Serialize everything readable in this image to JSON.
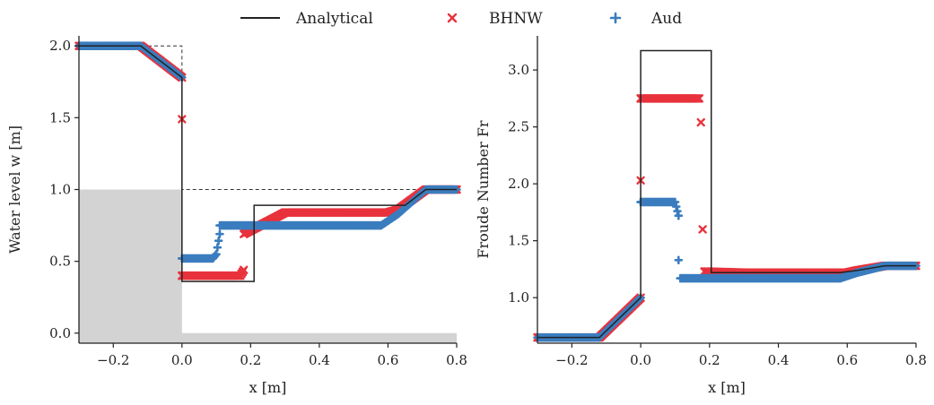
{
  "legend": {
    "placement": "top-center",
    "entries": [
      {
        "label": "Analytical",
        "style": "line",
        "color": "#222222"
      },
      {
        "label": "BHNW",
        "style": "x-marker",
        "color": "#e8323c"
      },
      {
        "label": "Aud",
        "style": "plus-marker",
        "color": "#3a7dbf"
      }
    ]
  },
  "colors": {
    "analytical": "#222222",
    "bhnw": "#e8323c",
    "aud": "#3a7dbf",
    "bed": "#d3d3d3",
    "initial": "#333333"
  },
  "chart_data": [
    {
      "type": "line",
      "xlabel": "x [m]",
      "ylabel": "Water level w [m]",
      "xlim": [
        -0.3,
        0.8
      ],
      "ylim": [
        -0.07,
        2.07
      ],
      "xticks": [
        "−0.2",
        "0.0",
        "0.2",
        "0.4",
        "0.6",
        "0.8"
      ],
      "xtick_values": [
        -0.2,
        0.0,
        0.2,
        0.4,
        0.6,
        0.8
      ],
      "yticks": [
        "0.0",
        "0.5",
        "1.0",
        "1.5",
        "2.0"
      ],
      "ytick_values": [
        0.0,
        0.5,
        1.0,
        1.5,
        2.0
      ],
      "grid": false,
      "bed": {
        "x": [
          -0.3,
          0.0,
          0.0,
          0.8
        ],
        "y": [
          1.0,
          1.0,
          0.0,
          0.0
        ],
        "fill_to": -0.07
      },
      "initial_condition": {
        "x": [
          -0.3,
          0.0,
          0.0,
          0.8
        ],
        "y": [
          2.0,
          2.0,
          1.0,
          1.0
        ]
      },
      "series": [
        {
          "name": "Analytical",
          "style": "line",
          "x": [
            -0.3,
            -0.12,
            0.0,
            0.0,
            0.21,
            0.21,
            0.65,
            0.71,
            0.8
          ],
          "y": [
            2.0,
            2.0,
            1.78,
            0.36,
            0.36,
            0.89,
            0.89,
            1.0,
            1.0
          ]
        },
        {
          "name": "BHNW",
          "style": "x",
          "x": [
            -0.3,
            -0.12,
            0.0,
            0.0,
            0.0,
            0.0,
            0.1,
            0.17,
            0.18,
            0.18,
            0.3,
            0.45,
            0.6,
            0.63,
            0.71,
            0.8
          ],
          "y": [
            2.0,
            2.0,
            1.78,
            1.49,
            0.4,
            0.4,
            0.4,
            0.4,
            0.44,
            0.69,
            0.84,
            0.84,
            0.84,
            0.86,
            1.0,
            1.0
          ]
        },
        {
          "name": "Aud",
          "style": "plus",
          "x": [
            -0.3,
            -0.12,
            0.0,
            0.0,
            0.0,
            0.09,
            0.1,
            0.11,
            0.11,
            0.12,
            0.3,
            0.45,
            0.58,
            0.63,
            0.71,
            0.8
          ],
          "y": [
            2.0,
            2.0,
            1.78,
            0.52,
            0.52,
            0.52,
            0.55,
            0.69,
            0.75,
            0.75,
            0.75,
            0.75,
            0.75,
            0.83,
            1.0,
            1.0
          ]
        }
      ]
    },
    {
      "type": "line",
      "xlabel": "x [m]",
      "ylabel": "Froude Number Fr",
      "xlim": [
        -0.3,
        0.8
      ],
      "ylim": [
        0.6,
        3.3
      ],
      "xticks": [
        "−0.2",
        "0.0",
        "0.2",
        "0.4",
        "0.6",
        "0.8"
      ],
      "xtick_values": [
        -0.2,
        0.0,
        0.2,
        0.4,
        0.6,
        0.8
      ],
      "yticks": [
        "1.0",
        "1.5",
        "2.0",
        "2.5",
        "3.0"
      ],
      "ytick_values": [
        1.0,
        1.5,
        2.0,
        2.5,
        3.0
      ],
      "grid": false,
      "series": [
        {
          "name": "Analytical",
          "style": "line",
          "x": [
            -0.3,
            -0.12,
            0.0,
            0.0,
            0.205,
            0.205,
            0.58,
            0.63,
            0.71,
            0.8
          ],
          "y": [
            0.65,
            0.65,
            1.0,
            3.17,
            3.17,
            1.22,
            1.22,
            1.24,
            1.28,
            1.28
          ]
        },
        {
          "name": "BHNW",
          "style": "x",
          "x": [
            -0.3,
            -0.12,
            0.0,
            0.0,
            0.0,
            0.0,
            0.1,
            0.17,
            0.175,
            0.18,
            0.185,
            0.3,
            0.45,
            0.6,
            0.63,
            0.71,
            0.8
          ],
          "y": [
            0.65,
            0.65,
            1.0,
            2.03,
            2.75,
            2.75,
            2.75,
            2.75,
            2.54,
            1.6,
            1.23,
            1.22,
            1.22,
            1.22,
            1.24,
            1.28,
            1.28
          ]
        },
        {
          "name": "Aud",
          "style": "plus",
          "x": [
            -0.3,
            -0.12,
            0.0,
            0.0,
            0.0,
            0.1,
            0.11,
            0.11,
            0.115,
            0.3,
            0.45,
            0.58,
            0.63,
            0.71,
            0.8
          ],
          "y": [
            0.65,
            0.65,
            1.0,
            1.84,
            1.84,
            1.84,
            1.72,
            1.33,
            1.17,
            1.17,
            1.17,
            1.17,
            1.22,
            1.28,
            1.28
          ]
        }
      ]
    }
  ]
}
